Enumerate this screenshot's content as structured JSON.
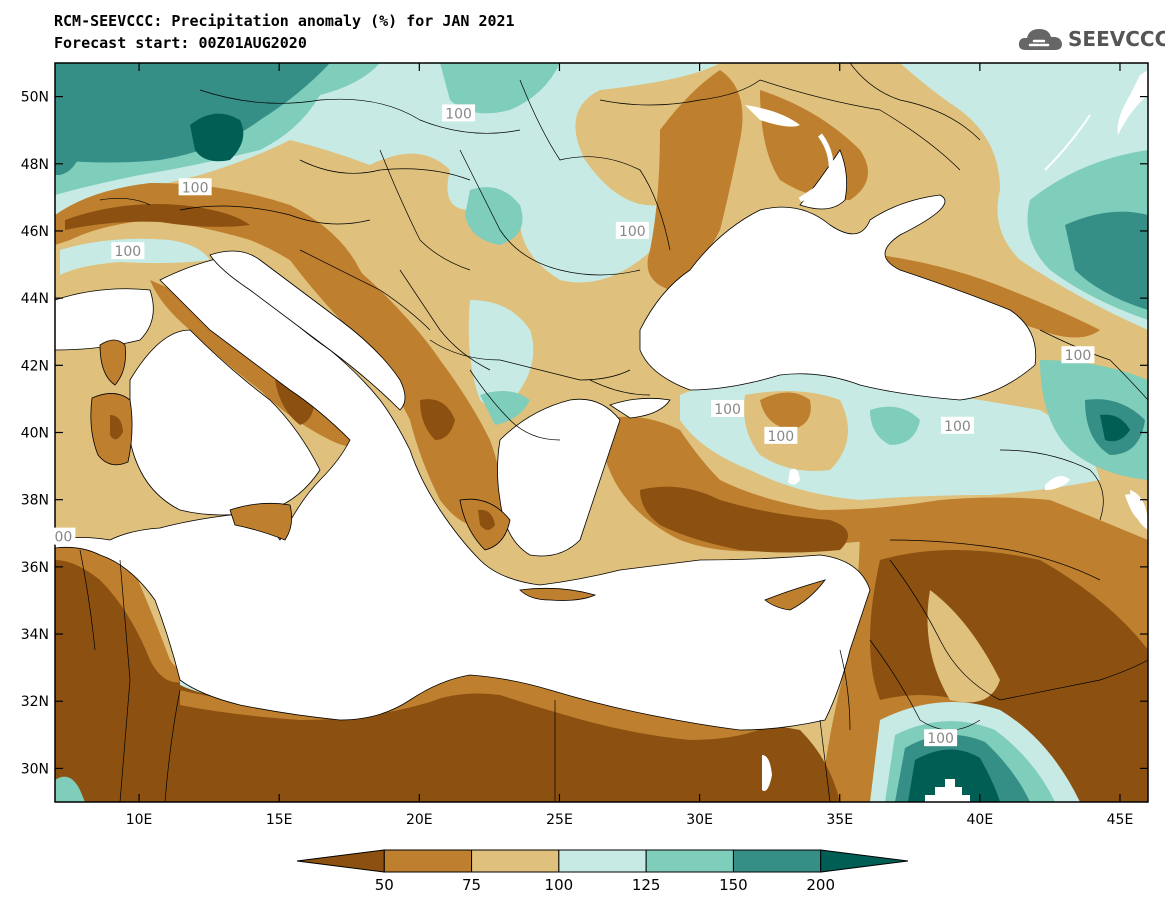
{
  "title_line1": "RCM-SEEVCCC: Precipitation anomaly (%) for JAN 2021",
  "title_line2": "Forecast start: 00Z01AUG2020",
  "logo_text": "SEEVCCC",
  "logo_icon": "cloud-icon",
  "map": {
    "lon_range": [
      7,
      46
    ],
    "lat_range": [
      29,
      51
    ],
    "lon_ticks": [
      {
        "value": 10,
        "label": "10E"
      },
      {
        "value": 15,
        "label": "15E"
      },
      {
        "value": 20,
        "label": "20E"
      },
      {
        "value": 25,
        "label": "25E"
      },
      {
        "value": 30,
        "label": "30E"
      },
      {
        "value": 35,
        "label": "35E"
      },
      {
        "value": 40,
        "label": "40E"
      },
      {
        "value": 45,
        "label": "45E"
      }
    ],
    "lat_ticks": [
      {
        "value": 30,
        "label": "30N"
      },
      {
        "value": 32,
        "label": "32N"
      },
      {
        "value": 34,
        "label": "34N"
      },
      {
        "value": 36,
        "label": "36N"
      },
      {
        "value": 38,
        "label": "38N"
      },
      {
        "value": 40,
        "label": "40N"
      },
      {
        "value": 42,
        "label": "42N"
      },
      {
        "value": 44,
        "label": "44N"
      },
      {
        "value": 46,
        "label": "46N"
      },
      {
        "value": 48,
        "label": "48N"
      },
      {
        "value": 50,
        "label": "50N"
      }
    ],
    "contour_labels": [
      {
        "text": "100",
        "lon": 21.4,
        "lat": 49.5
      },
      {
        "text": "100",
        "lon": 12.0,
        "lat": 47.3
      },
      {
        "text": "100",
        "lon": 9.6,
        "lat": 45.4
      },
      {
        "text": "100",
        "lon": 27.6,
        "lat": 46.0
      },
      {
        "text": "100",
        "lon": 43.5,
        "lat": 42.3
      },
      {
        "text": "100",
        "lon": 31.0,
        "lat": 40.7
      },
      {
        "text": "100",
        "lon": 32.9,
        "lat": 39.9
      },
      {
        "text": "100",
        "lon": 39.2,
        "lat": 40.2
      },
      {
        "text": "100",
        "lon": 38.6,
        "lat": 30.9
      },
      {
        "text": "00",
        "lon": 7.3,
        "lat": 36.9
      }
    ],
    "colors": {
      "below50": "#8c5110",
      "50-75": "#be7f2e",
      "75-100": "#dfc07c",
      "100-125": "#c7ebe4",
      "125-150": "#7fcdbb",
      "150-200": "#358f87",
      "above200": "#005e54",
      "sea": "#ffffff"
    }
  },
  "colorbar": {
    "labels": [
      "50",
      "75",
      "100",
      "125",
      "150",
      "200"
    ],
    "colors": [
      "#8c5110",
      "#be7f2e",
      "#dfc07c",
      "#c7ebe4",
      "#7fcdbb",
      "#358f87",
      "#005e54"
    ]
  }
}
